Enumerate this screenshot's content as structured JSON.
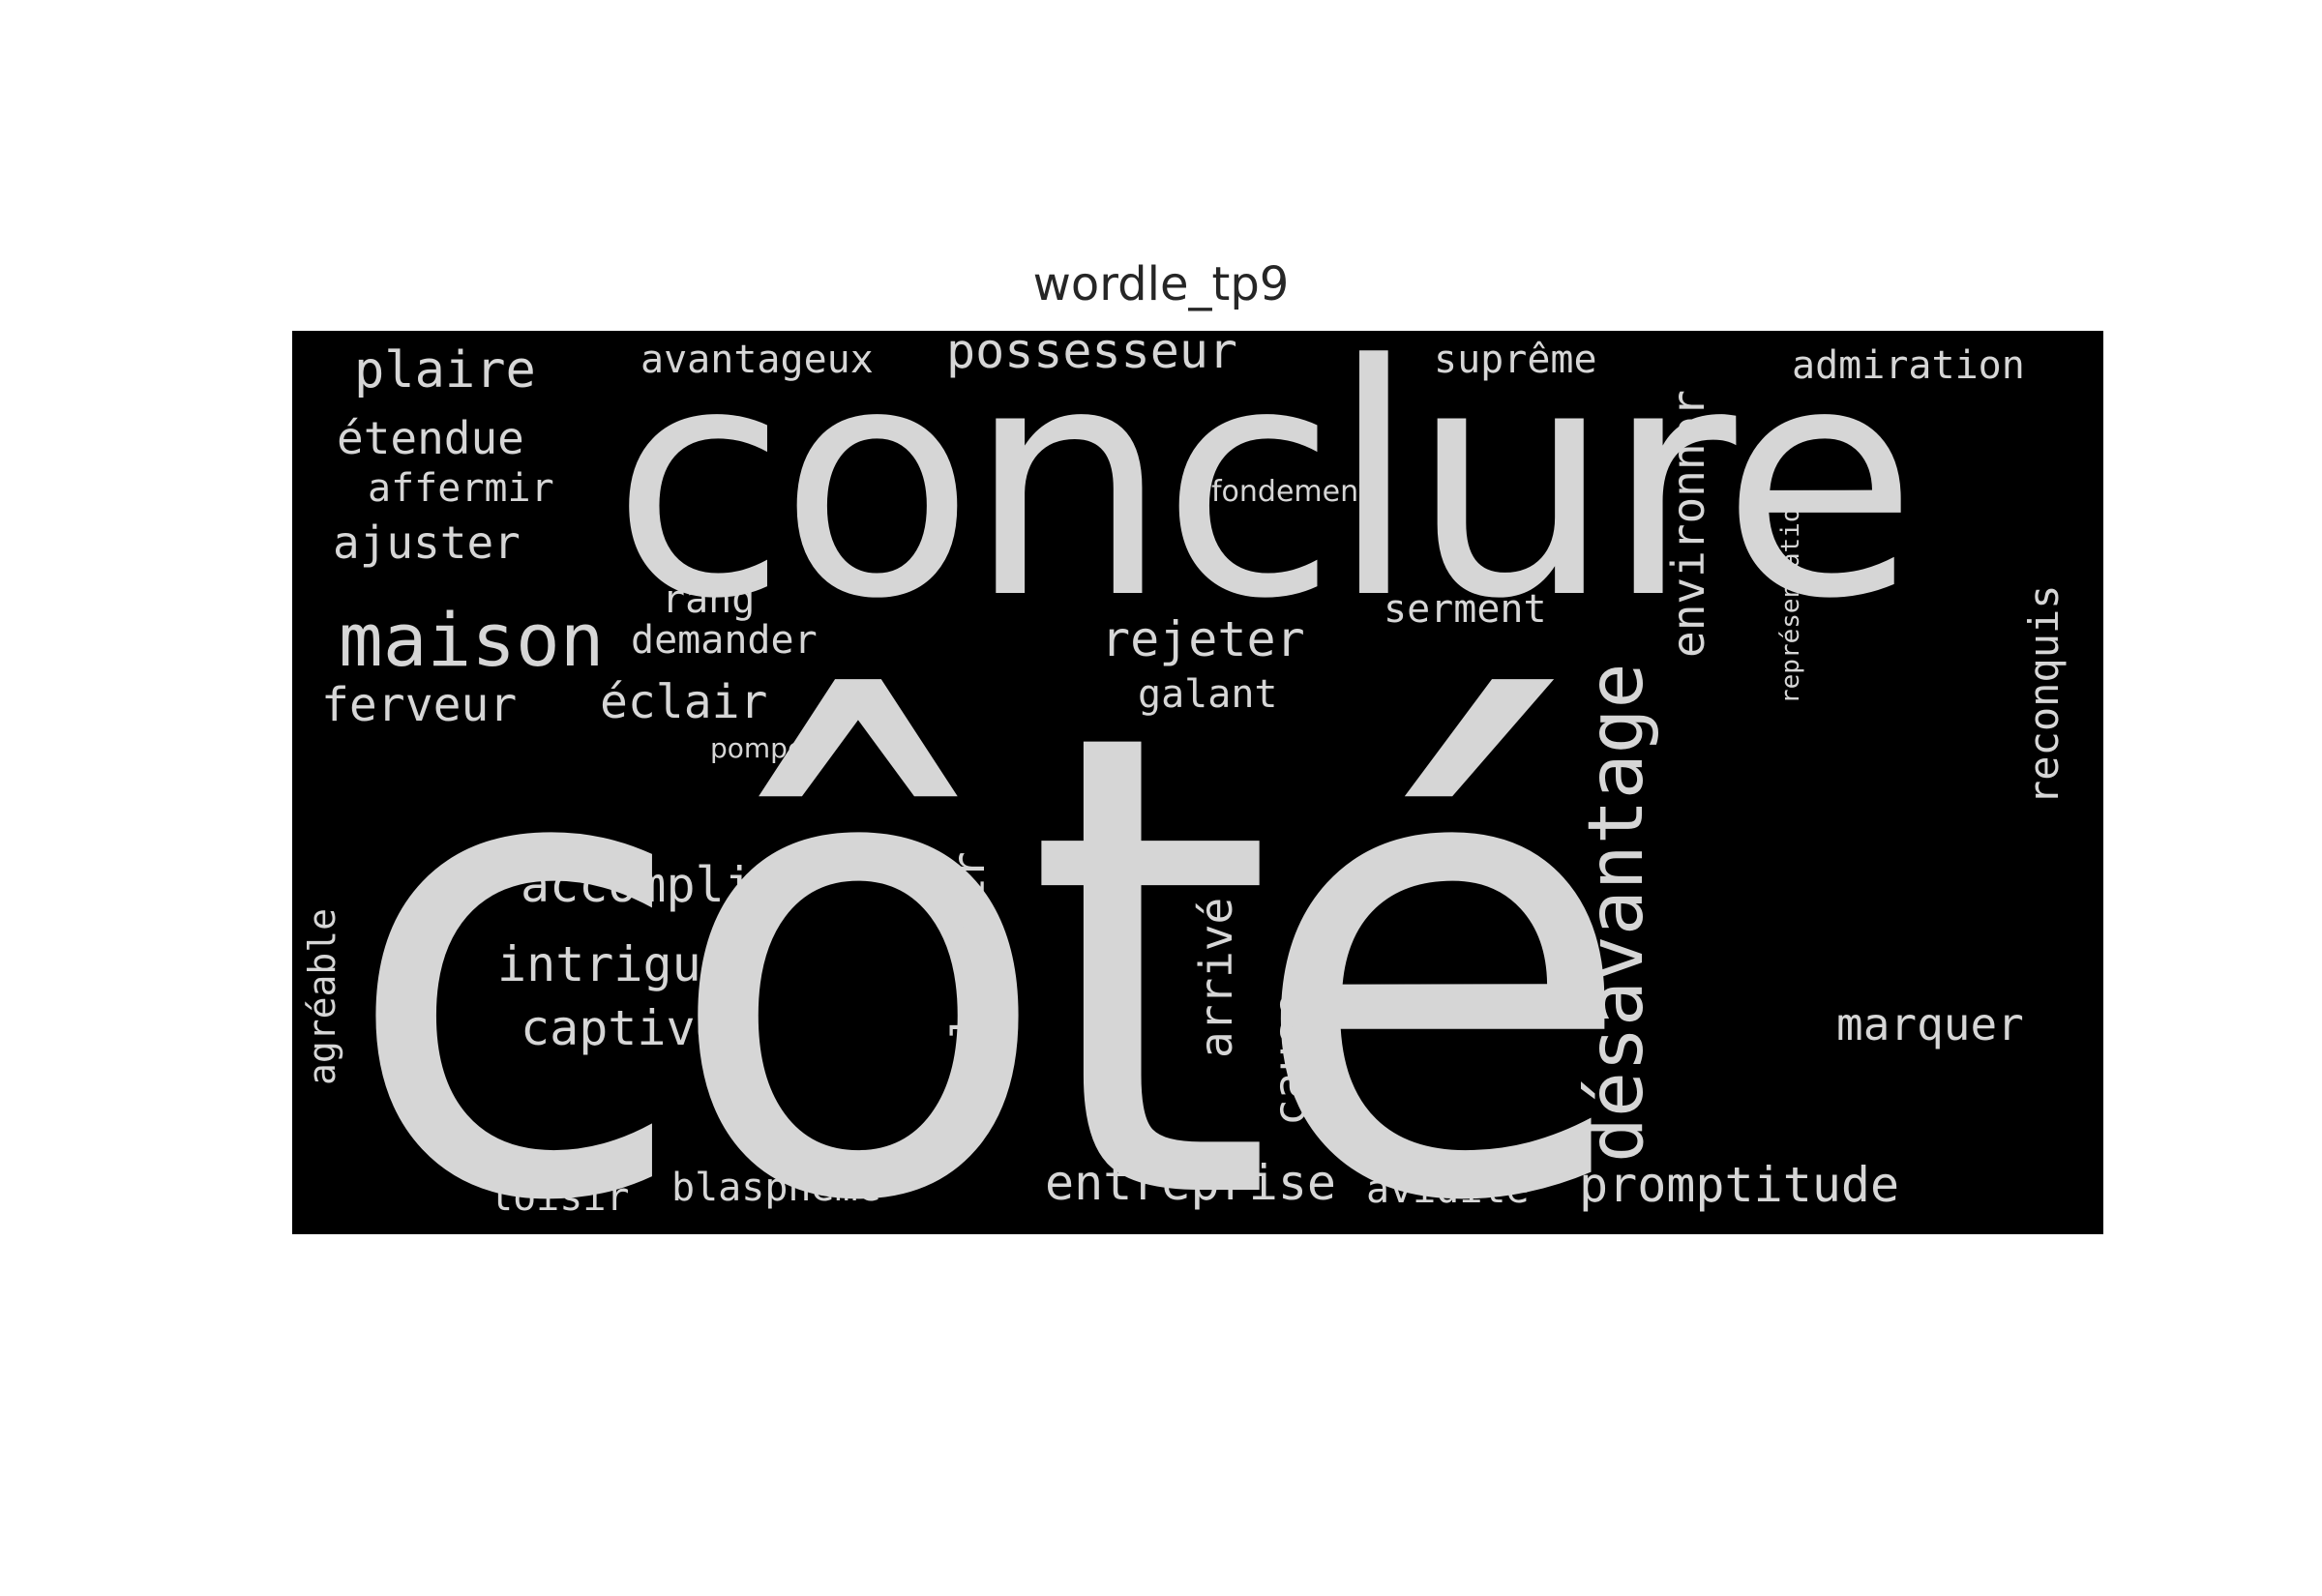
{
  "title": "wordle_tp9",
  "colors": {
    "background": "#000000",
    "word": "#d6d6d6",
    "page": "#ffffff",
    "title": "#262626"
  },
  "words": [
    "côté",
    "conclure",
    "désavantage",
    "maison",
    "possesseur",
    "plaire",
    "avantageux",
    "suprême",
    "admiration",
    "étendue",
    "affermir",
    "ajuster",
    "fondement",
    "environner",
    "représentation",
    "rang",
    "demander",
    "rejeter",
    "serment",
    "ferveur",
    "éclair",
    "galant",
    "pompe",
    "reconquis",
    "accompli",
    "intrigue",
    "captiver",
    "pleuvoir",
    "arrivé",
    "cause",
    "agréable",
    "marquer",
    "loisir",
    "blasphème",
    "entreprise",
    "avidité",
    "promptitude"
  ]
}
